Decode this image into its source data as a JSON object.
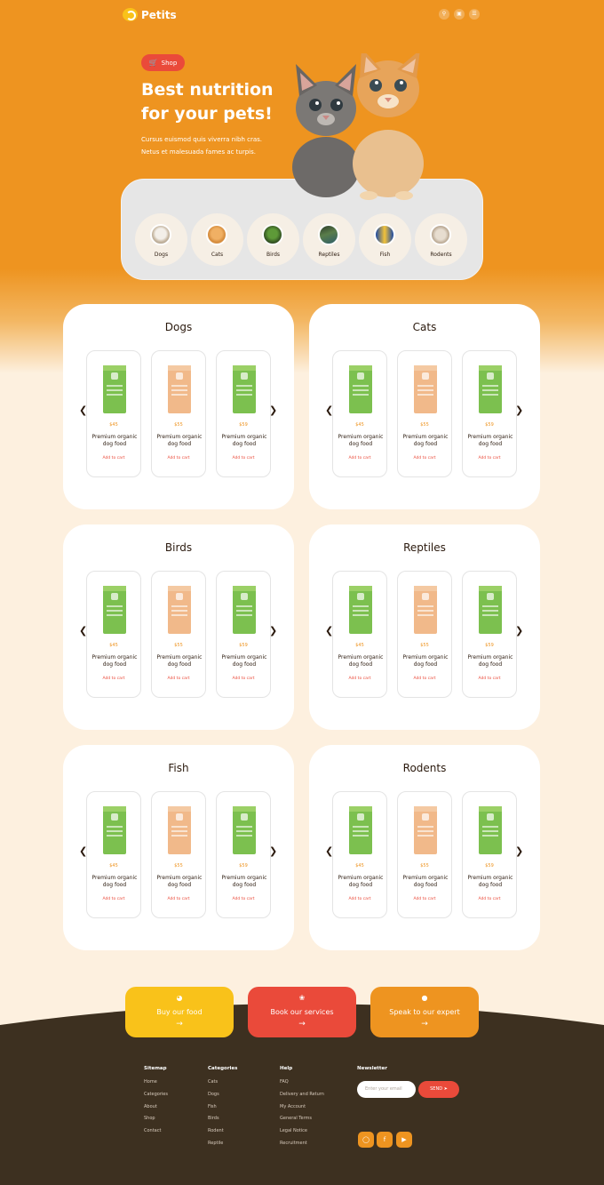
{
  "header": {
    "brand": "Petits"
  },
  "hero": {
    "shop_label": "Shop",
    "title_line1": "Best nutrition",
    "title_line2": "for your pets!",
    "sub_line1": "Cursus euismod quis viverra nibh cras.",
    "sub_line2": "Netus et malesuada fames ac turpis.",
    "categories": [
      "Dogs",
      "Cats",
      "Birds",
      "Reptiles",
      "Fish",
      "Rodents"
    ]
  },
  "sections": [
    {
      "title": "Dogs",
      "products": [
        {
          "price": "$45",
          "name": "Premium organic dog food",
          "cta": "Add to cart"
        },
        {
          "price": "$55",
          "name": "Premium organic dog food",
          "cta": "Add to cart"
        },
        {
          "price": "$59",
          "name": "Premium organic dog food",
          "cta": "Add to cart"
        }
      ]
    },
    {
      "title": "Cats",
      "products": [
        {
          "price": "$45",
          "name": "Premium organic dog food",
          "cta": "Add to cart"
        },
        {
          "price": "$55",
          "name": "Premium organic dog food",
          "cta": "Add to cart"
        },
        {
          "price": "$59",
          "name": "Premium organic dog food",
          "cta": "Add to cart"
        }
      ]
    },
    {
      "title": "Birds",
      "products": [
        {
          "price": "$45",
          "name": "Premium organic dog food",
          "cta": "Add to cart"
        },
        {
          "price": "$55",
          "name": "Premium organic dog food",
          "cta": "Add to cart"
        },
        {
          "price": "$59",
          "name": "Premium organic dog food",
          "cta": "Add to cart"
        }
      ]
    },
    {
      "title": "Reptiles",
      "products": [
        {
          "price": "$45",
          "name": "Premium organic dog food",
          "cta": "Add to cart"
        },
        {
          "price": "$55",
          "name": "Premium organic dog food",
          "cta": "Add to cart"
        },
        {
          "price": "$59",
          "name": "Premium organic dog food",
          "cta": "Add to cart"
        }
      ]
    },
    {
      "title": "Fish",
      "products": [
        {
          "price": "$45",
          "name": "Premium organic dog food",
          "cta": "Add to cart"
        },
        {
          "price": "$55",
          "name": "Premium organic dog food",
          "cta": "Add to cart"
        },
        {
          "price": "$59",
          "name": "Premium organic dog food",
          "cta": "Add to cart"
        }
      ]
    },
    {
      "title": "Rodents",
      "products": [
        {
          "price": "$45",
          "name": "Premium organic dog food",
          "cta": "Add to cart"
        },
        {
          "price": "$55",
          "name": "Premium organic dog food",
          "cta": "Add to cart"
        },
        {
          "price": "$59",
          "name": "Premium organic dog food",
          "cta": "Add to cart"
        }
      ]
    }
  ],
  "ctas": [
    {
      "label": "Buy our food",
      "icon": "bowl-icon",
      "color": "#f9c21a"
    },
    {
      "label": "Book our services",
      "icon": "spa-icon",
      "color": "#ea4a3a"
    },
    {
      "label": "Speak to our expert",
      "icon": "person-icon",
      "color": "#ee9420"
    }
  ],
  "footer": {
    "sitemap": {
      "title": "Sitemap",
      "links": [
        "Home",
        "Categories",
        "About",
        "Shop",
        "Contact"
      ]
    },
    "categories": {
      "title": "Categories",
      "links": [
        "Cats",
        "Dogs",
        "Fish",
        "Birds",
        "Rodent",
        "Reptile"
      ]
    },
    "help": {
      "title": "Help",
      "links": [
        "FAQ",
        "Delivery and Return",
        "My Account",
        "General Terms",
        "Legal Notice",
        "Recruitment"
      ]
    },
    "newsletter": {
      "title": "Newsletter",
      "placeholder": "Enter your email",
      "send_label": "SEND"
    },
    "socials": [
      "instagram-icon",
      "facebook-icon",
      "youtube-icon"
    ]
  },
  "colors": {
    "orange": "#ee9420",
    "red": "#ea4a3a",
    "yellow": "#f9c21a",
    "brown": "#3d3020",
    "cream": "#fdf0df"
  }
}
